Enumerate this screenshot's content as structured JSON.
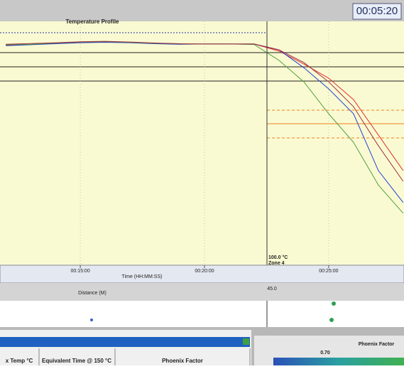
{
  "clock": "00:05:20",
  "chart_data": {
    "type": "line",
    "title": "Temperature Profile",
    "xlabel": "Time (HH:MM:SS)",
    "x": [
      720,
      780,
      840,
      900,
      960,
      1020,
      1080,
      1140,
      1200,
      1260,
      1320,
      1380,
      1440,
      1500,
      1560,
      1620,
      1680
    ],
    "xlim": [
      706,
      1682
    ],
    "xticks": [
      {
        "value": 900,
        "label": "00:15:00"
      },
      {
        "value": 1200,
        "label": "00:20:00"
      },
      {
        "value": 1500,
        "label": "00:25:00"
      }
    ],
    "ylim": [
      0,
      100
    ],
    "grid": true,
    "series": [
      {
        "color": "#e03030",
        "values": [
          90.2,
          90.5,
          91,
          91.4,
          91.6,
          91.3,
          90.9,
          90.7,
          90.7,
          90.7,
          90.7,
          87.8,
          82.5,
          76.7,
          67.9,
          53.4,
          38.8
        ]
      },
      {
        "color": "#2040d0",
        "values": [
          90,
          90.4,
          90.8,
          91.2,
          91.4,
          91.2,
          90.8,
          90.6,
          90.7,
          90.7,
          90.7,
          88.3,
          81,
          72.3,
          62.1,
          38.8,
          25.7
        ]
      },
      {
        "color": "#50a040",
        "values": [
          90.4,
          90.6,
          91.1,
          91.5,
          91.7,
          91.4,
          91,
          90.8,
          90.7,
          90.7,
          90.5,
          84,
          75.2,
          62.1,
          50.4,
          32.9,
          21.3
        ]
      },
      {
        "color": "#a03040",
        "values": [
          90.6,
          90.9,
          91.2,
          91.6,
          91.8,
          91.5,
          91.1,
          90.8,
          90.7,
          90.7,
          90.7,
          88.3,
          83.1,
          75.2,
          65,
          49,
          34.4
        ]
      }
    ]
  },
  "distance": {
    "label": "Distance (M)",
    "marker": "45.0"
  },
  "zone": {
    "temp": "100.0 °C",
    "name": "Zone 4"
  },
  "table": {
    "headers": [
      "x Temp °C",
      "Equivalent Time @ 150 °C",
      "Phoenix Factor"
    ]
  },
  "phoenix": {
    "title": "Phoenix Factor",
    "value": "0.70"
  }
}
